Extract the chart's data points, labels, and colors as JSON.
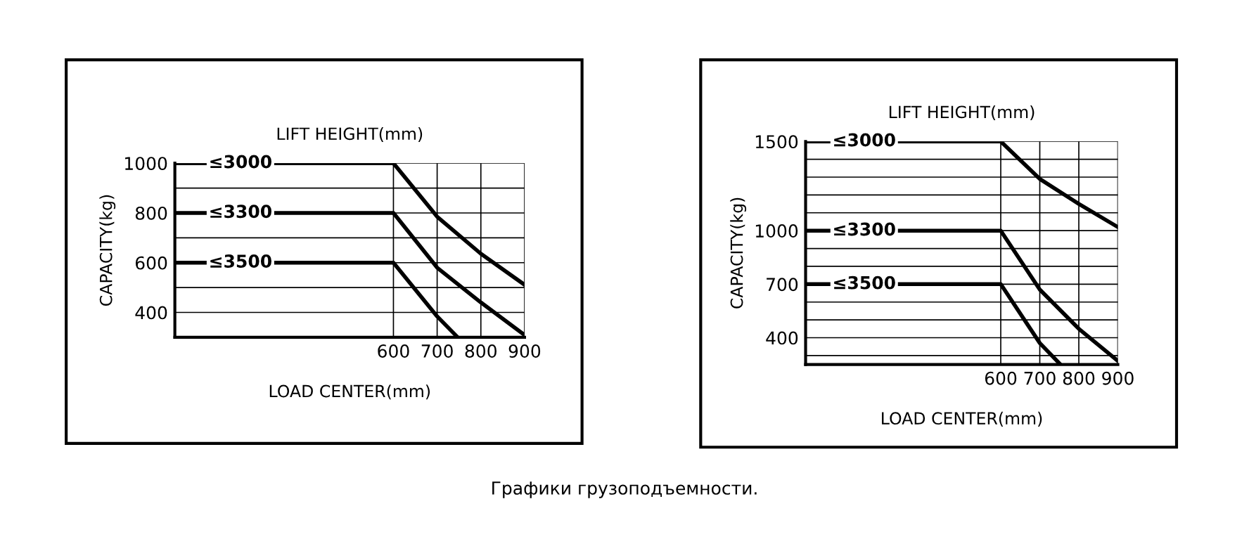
{
  "chart_data": [
    {
      "type": "line",
      "title": "LIFT HEIGHT(mm)",
      "xlabel": "LOAD CENTER(mm)",
      "ylabel": "CAPACITY(kg)",
      "xlim": [
        100,
        900
      ],
      "xticks": [
        600,
        700,
        800,
        900
      ],
      "ylim": [
        300,
        1000
      ],
      "yticks": [
        {
          "value": 300,
          "label": null
        },
        400,
        {
          "value": 500,
          "label": null
        },
        600,
        {
          "value": 700,
          "label": null
        },
        800,
        {
          "value": 900,
          "label": null
        },
        1000
      ],
      "grid": true,
      "line_style": "solid",
      "marker": "none",
      "series": [
        {
          "name": "≤3000",
          "color": "#000000",
          "x": [
            100,
            600,
            700,
            800,
            900
          ],
          "values": [
            1000,
            1000,
            785,
            636,
            511
          ]
        },
        {
          "name": "≤3300",
          "color": "#000000",
          "x": [
            100,
            600,
            700,
            800,
            900
          ],
          "values": [
            800,
            800,
            580,
            440,
            309
          ]
        },
        {
          "name": "≤3500",
          "color": "#000000",
          "x": [
            100,
            600,
            700,
            747
          ],
          "values": [
            600,
            600,
            384,
            300
          ]
        }
      ],
      "annotations": [
        "Графики грузоподъемности."
      ]
    },
    {
      "type": "line",
      "title": "LIFT HEIGHT(mm)",
      "xlabel": "LOAD CENTER(mm)",
      "ylabel": "CAPACITY(kg)",
      "xlim": [
        100,
        900
      ],
      "xticks": [
        600,
        700,
        800,
        900
      ],
      "ylim": [
        250,
        1500
      ],
      "yticks": [
        {
          "value": 300,
          "label": null
        },
        400,
        {
          "value": 500,
          "label": null
        },
        {
          "value": 600,
          "label": null
        },
        700,
        {
          "value": 800,
          "label": null
        },
        {
          "value": 900,
          "label": null
        },
        1000,
        {
          "value": 1100,
          "label": null
        },
        {
          "value": 1200,
          "label": null
        },
        {
          "value": 1300,
          "label": null
        },
        {
          "value": 1400,
          "label": null
        },
        1500
      ],
      "grid": true,
      "line_style": "solid",
      "marker": "none",
      "series": [
        {
          "name": "≤3000",
          "color": "#000000",
          "x": [
            100,
            600,
            700,
            800,
            900
          ],
          "values": [
            1500,
            1500,
            1290,
            1150,
            1020
          ]
        },
        {
          "name": "≤3300",
          "color": "#000000",
          "x": [
            100,
            600,
            700,
            800,
            900
          ],
          "values": [
            1000,
            1000,
            670,
            450,
            270
          ]
        },
        {
          "name": "≤3500",
          "color": "#000000",
          "x": [
            100,
            600,
            700,
            753
          ],
          "values": [
            700,
            700,
            370,
            250
          ]
        }
      ]
    }
  ]
}
